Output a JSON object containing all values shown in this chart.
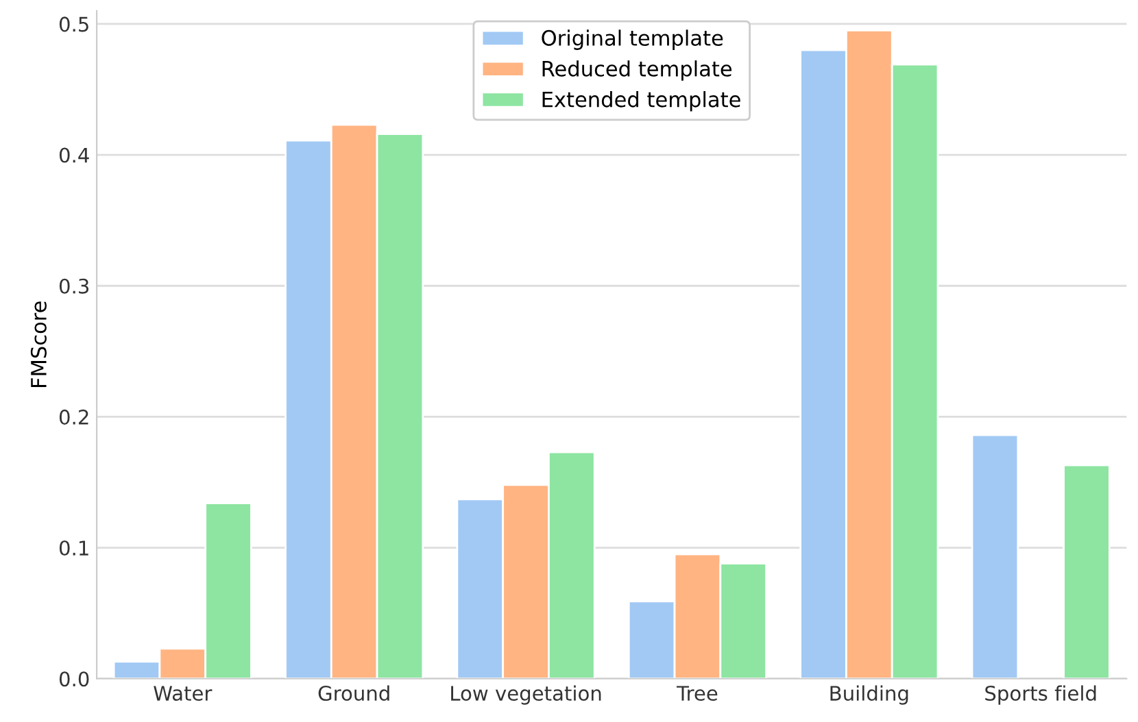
{
  "chart_data": {
    "type": "bar",
    "ylabel": "FMScore",
    "categories": [
      "Water",
      "Ground",
      "Low vegetation",
      "Tree",
      "Building",
      "Sports field"
    ],
    "series": [
      {
        "name": "Original template",
        "color": "#a1c9f4",
        "values": [
          0.013,
          0.411,
          0.137,
          0.059,
          0.48,
          0.186
        ]
      },
      {
        "name": "Reduced template",
        "color": "#ffb482",
        "values": [
          0.023,
          0.423,
          0.148,
          0.095,
          0.495,
          null
        ]
      },
      {
        "name": "Extended template",
        "color": "#8de5a1",
        "values": [
          0.134,
          0.416,
          0.173,
          0.088,
          0.469,
          0.163
        ]
      }
    ],
    "ylim": [
      0,
      0.51
    ],
    "yticks": [
      {
        "value": 0,
        "label": "0.0"
      },
      0.1,
      0.2,
      0.3,
      0.4,
      0.5
    ],
    "grid": "y",
    "legend": "top"
  }
}
